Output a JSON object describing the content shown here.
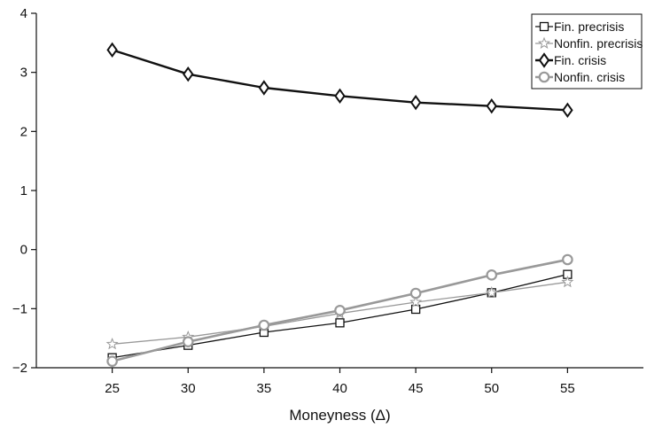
{
  "chart_data": {
    "type": "line",
    "title": "",
    "xlabel": "Moneyness (Δ)",
    "ylabel": "",
    "x": [
      25,
      30,
      35,
      40,
      45,
      50,
      55
    ],
    "xticks": [
      "25",
      "30",
      "35",
      "40",
      "45",
      "50",
      "55"
    ],
    "xlim": [
      20,
      60
    ],
    "ylim": [
      -2,
      4
    ],
    "yticks": [
      "−2",
      "−1",
      "0",
      "1",
      "2",
      "3",
      "4"
    ],
    "ytick_values": [
      -2,
      -1,
      0,
      1,
      2,
      3,
      4
    ],
    "grid": false,
    "legend_position": "top-right",
    "series": [
      {
        "name": "Fin. precrisis",
        "marker": "square",
        "color": "#111111",
        "values": [
          -1.83,
          -1.62,
          -1.4,
          -1.24,
          -1.01,
          -0.73,
          -0.42
        ]
      },
      {
        "name": "Nonfin. precrisis",
        "marker": "star",
        "color": "#999999",
        "values": [
          -1.6,
          -1.48,
          -1.3,
          -1.08,
          -0.89,
          -0.73,
          -0.55
        ]
      },
      {
        "name": "Fin. crisis",
        "marker": "diamond",
        "color": "#111111",
        "values": [
          3.38,
          2.97,
          2.74,
          2.6,
          2.49,
          2.43,
          2.36
        ]
      },
      {
        "name": "Nonfin. crisis",
        "marker": "circle",
        "color": "#999999",
        "values": [
          -1.89,
          -1.56,
          -1.28,
          -1.03,
          -0.74,
          -0.43,
          -0.17
        ]
      }
    ]
  }
}
